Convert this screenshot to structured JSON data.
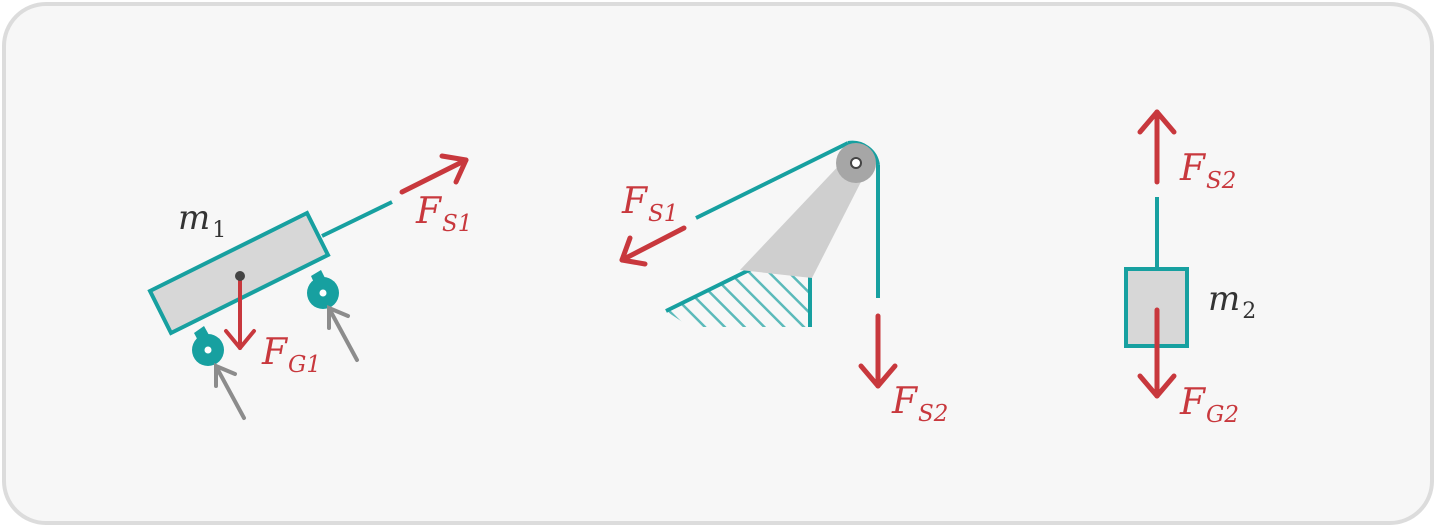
{
  "colors": {
    "rope_teal": "#17a0a0",
    "force_red": "#c8383d",
    "body_gray": "#d7d7d7",
    "support_gray": "#8c8c8c",
    "pulley_gray": "#a6a6a6",
    "background": "#f7f7f7",
    "border": "#dcdcdc",
    "text_dark": "#333333"
  },
  "left_body": {
    "mass": {
      "symbol": "m",
      "index": "1"
    },
    "tension": {
      "symbol": "F",
      "index": "S1"
    },
    "weight": {
      "symbol": "F",
      "index": "G1"
    }
  },
  "pulley": {
    "tension_left": {
      "symbol": "F",
      "index": "S1"
    },
    "tension_down": {
      "symbol": "F",
      "index": "S2"
    }
  },
  "hanging_body": {
    "mass": {
      "symbol": "m",
      "index": "2"
    },
    "tension": {
      "symbol": "F",
      "index": "S2"
    },
    "weight": {
      "symbol": "F",
      "index": "G2"
    }
  }
}
